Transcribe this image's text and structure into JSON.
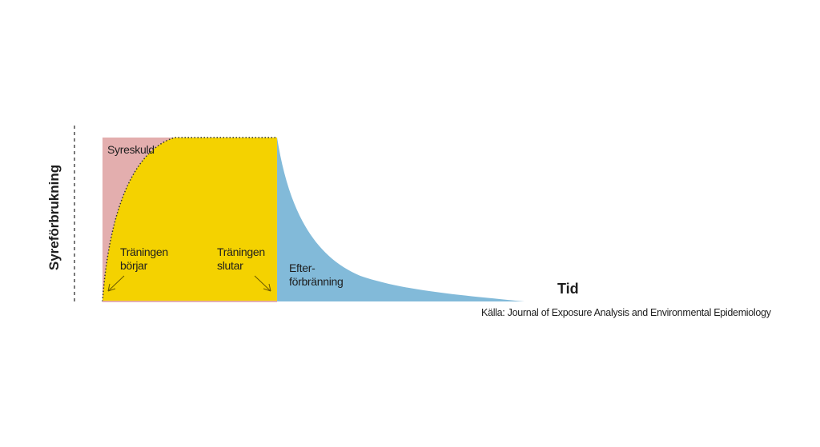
{
  "diagram": {
    "y_axis_label": "Syreförbrukning",
    "x_axis_label": "Tid",
    "regions": {
      "oxygen_debt": {
        "label": "Syreskuld",
        "color": "#e3aeae"
      },
      "exercise": {
        "color": "#f4d200"
      },
      "afterburn": {
        "label_line1": "Efter-",
        "label_line2": "förbränning",
        "color": "#82bad9"
      }
    },
    "annotations": {
      "start_line1": "Träningen",
      "start_line2": "börjar",
      "end_line1": "Träningen",
      "end_line2": "slutar"
    },
    "source": "Källa: Journal of Exposure Analysis and Environmental Epidemiology"
  }
}
